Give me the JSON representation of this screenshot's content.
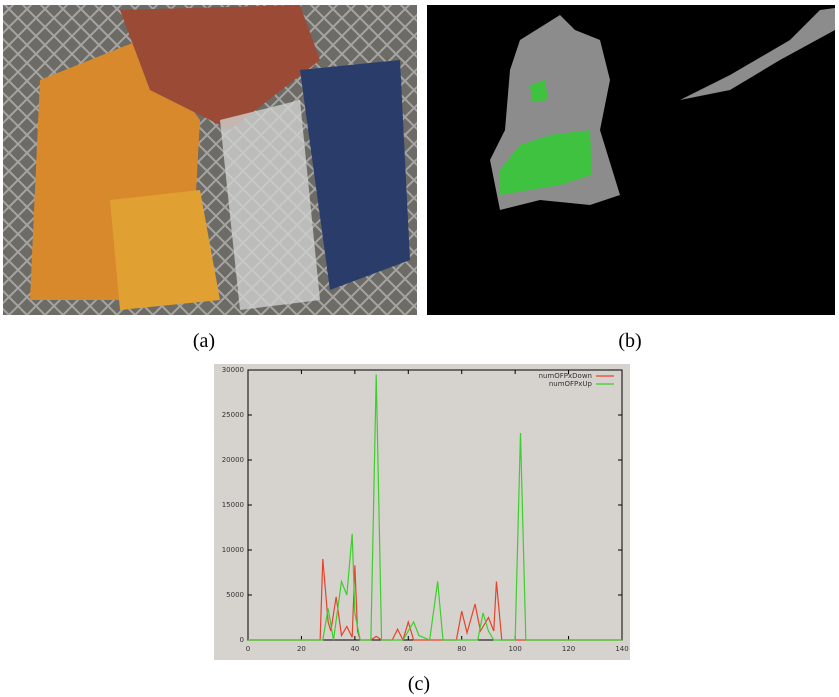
{
  "panels": [
    {
      "label": "(a)"
    },
    {
      "label": "(b)"
    },
    {
      "label": "(c)"
    }
  ],
  "chart_data": {
    "type": "line",
    "series": [
      {
        "name": "numOFPxDown",
        "color": "#e8412c",
        "x": [
          0,
          27,
          28,
          30,
          31,
          33,
          35,
          37,
          39,
          40,
          41,
          42,
          46,
          48,
          50,
          54,
          56,
          58,
          60,
          62,
          64,
          78,
          80,
          82,
          85,
          87,
          90,
          92,
          93,
          95,
          140
        ],
        "values": [
          0,
          0,
          9000,
          2000,
          1000,
          4800,
          500,
          1500,
          300,
          8300,
          1000,
          0,
          0,
          400,
          0,
          0,
          1200,
          0,
          2000,
          0,
          0,
          0,
          3200,
          800,
          4000,
          1000,
          2500,
          1000,
          6500,
          0,
          0
        ]
      },
      {
        "name": "numOFPxUp",
        "color": "#3ccf2c",
        "x": [
          0,
          28,
          30,
          32,
          35,
          37,
          39,
          40,
          42,
          46,
          48,
          50,
          58,
          62,
          64,
          68,
          71,
          73,
          86,
          88,
          90,
          92,
          100,
          102,
          104,
          140
        ],
        "values": [
          0,
          0,
          3500,
          0,
          6500,
          5000,
          11800,
          3000,
          0,
          0,
          29500,
          0,
          0,
          2000,
          500,
          0,
          6500,
          0,
          0,
          3000,
          1000,
          0,
          0,
          23000,
          0,
          0
        ]
      }
    ],
    "xlim": [
      0,
      140
    ],
    "ylim": [
      0,
      30000
    ],
    "xticks": [
      0,
      20,
      40,
      60,
      80,
      100,
      120,
      140
    ],
    "yticks": [
      0,
      5000,
      10000,
      15000,
      20000,
      25000,
      30000
    ],
    "legend": "upper right"
  }
}
